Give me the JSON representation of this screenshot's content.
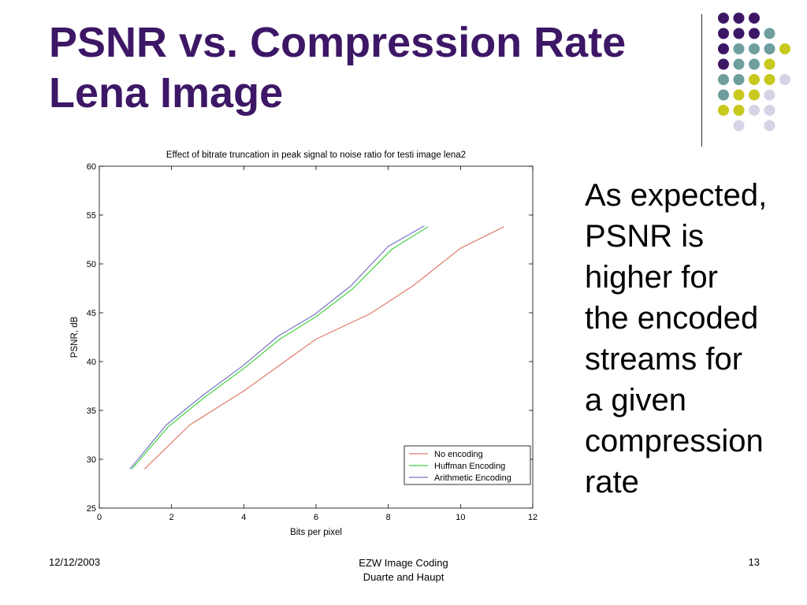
{
  "slide": {
    "title_line1": "PSNR vs. Compression Rate",
    "title_line2": "Lena Image",
    "body_lines": [
      "As expected,",
      "PSNR is",
      "higher for",
      "the encoded",
      "streams for",
      "a given",
      "compression",
      "rate"
    ]
  },
  "footer": {
    "date": "12/12/2003",
    "center_line1": "EZW Image Coding",
    "center_line2": "Duarte and Haupt",
    "page": "13"
  },
  "colors": {
    "title": "#3d1766",
    "dot_purple": "#3d1766",
    "dot_teal": "#6e9e9e",
    "dot_yellow": "#c8c81e",
    "dot_lavender": "#d4d4e6"
  },
  "chart_data": {
    "type": "line",
    "title": "Effect of bitrate truncation in peak signal to noise ratio for testi image lena2",
    "xlabel": "Bits per pixel",
    "ylabel": "PSNR, dB",
    "xlim": [
      0,
      12
    ],
    "ylim": [
      25,
      60
    ],
    "xticks": [
      0,
      2,
      4,
      6,
      8,
      10,
      12
    ],
    "yticks": [
      25,
      30,
      35,
      40,
      45,
      50,
      55,
      60
    ],
    "grid": false,
    "legend": "bottom-right",
    "series": [
      {
        "name": "No encoding",
        "color": "#e07b6e",
        "x": [
          1.25,
          2.5,
          4,
          6,
          7.5,
          8.7,
          10,
          11.2
        ],
        "y": [
          29,
          33.5,
          37,
          42.3,
          44.9,
          47.8,
          51.6,
          53.8
        ]
      },
      {
        "name": "Huffman Encoding",
        "color": "#43d243",
        "x": [
          0.9,
          1.9,
          2.9,
          4,
          5,
          6,
          7,
          8.1,
          9.1
        ],
        "y": [
          29,
          33.3,
          36.3,
          39.3,
          42.3,
          44.6,
          47.4,
          51.5,
          53.8
        ]
      },
      {
        "name": "Arithmetic Encoding",
        "color": "#7777c4",
        "x": [
          0.85,
          1.85,
          2.85,
          3.95,
          4.95,
          5.95,
          6.95,
          8.0,
          9.0
        ],
        "y": [
          29,
          33.5,
          36.5,
          39.5,
          42.6,
          44.8,
          47.7,
          51.8,
          53.9
        ]
      }
    ]
  }
}
